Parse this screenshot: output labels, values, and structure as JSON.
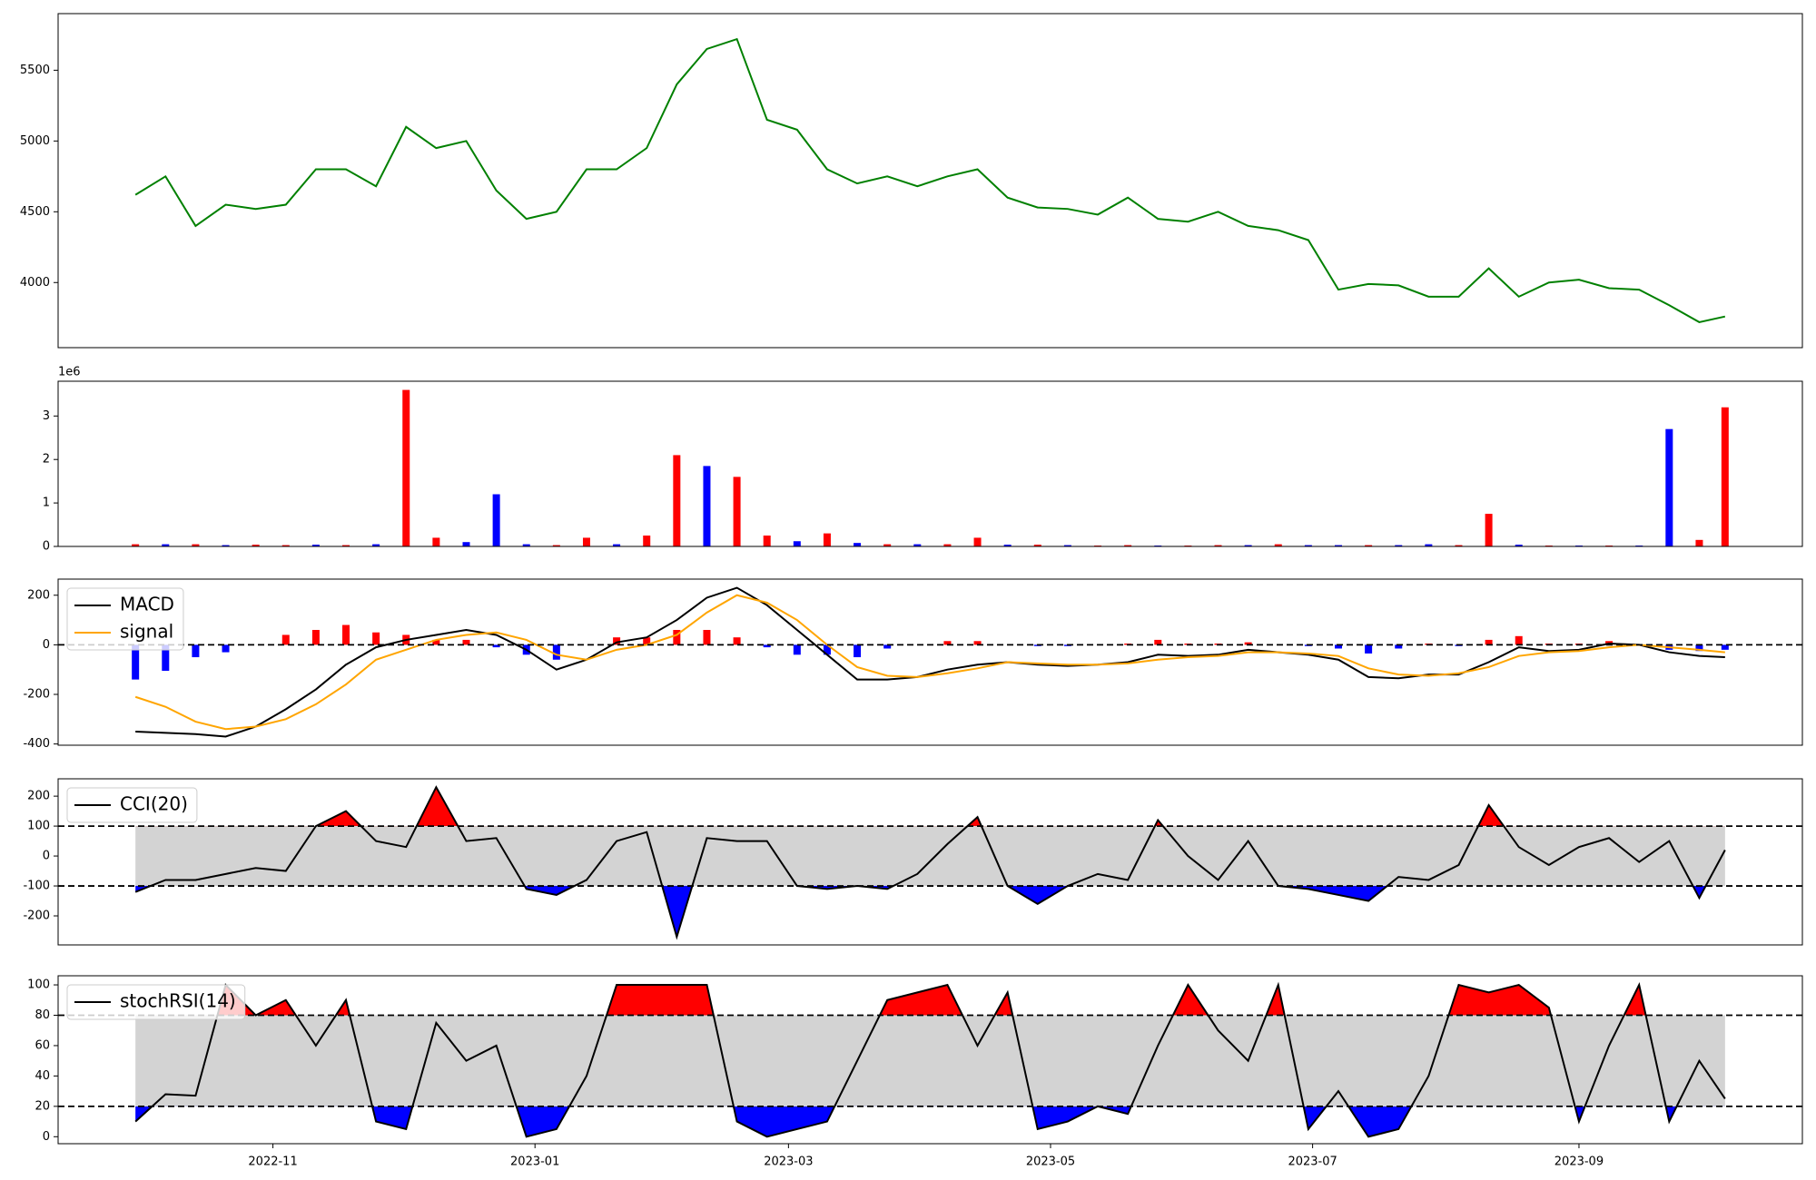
{
  "chart_data": [
    {
      "type": "line",
      "x": [
        "2022-09-30",
        "2022-10-07",
        "2022-10-14",
        "2022-10-21",
        "2022-10-28",
        "2022-11-04",
        "2022-11-11",
        "2022-11-18",
        "2022-11-25",
        "2022-12-02",
        "2022-12-09",
        "2022-12-16",
        "2022-12-23",
        "2022-12-30",
        "2023-01-06",
        "2023-01-13",
        "2023-01-20",
        "2023-01-27",
        "2023-02-03",
        "2023-02-10",
        "2023-02-17",
        "2023-02-24",
        "2023-03-03",
        "2023-03-10",
        "2023-03-17",
        "2023-03-24",
        "2023-03-31",
        "2023-04-07",
        "2023-04-14",
        "2023-04-21",
        "2023-04-28",
        "2023-05-05",
        "2023-05-12",
        "2023-05-19",
        "2023-05-26",
        "2023-06-02",
        "2023-06-09",
        "2023-06-16",
        "2023-06-23",
        "2023-06-30",
        "2023-07-07",
        "2023-07-14",
        "2023-07-21",
        "2023-07-28",
        "2023-08-04",
        "2023-08-11",
        "2023-08-18",
        "2023-08-25",
        "2023-09-01",
        "2023-09-08",
        "2023-09-15",
        "2023-09-22",
        "2023-09-29",
        "2023-10-05"
      ],
      "series": [
        {
          "color": "green",
          "values": [
            4620,
            4750,
            4400,
            4550,
            4520,
            4550,
            4800,
            4800,
            4680,
            5100,
            4950,
            5000,
            4650,
            4450,
            4500,
            4800,
            4800,
            4950,
            5400,
            5650,
            5720,
            5150,
            5080,
            4800,
            4700,
            4750,
            4680,
            4750,
            4800,
            4600,
            4530,
            4520,
            4480,
            4600,
            4450,
            4430,
            4500,
            4400,
            4370,
            4300,
            3950,
            3990,
            3980,
            3900,
            3900,
            4100,
            3900,
            4000,
            4020,
            3960,
            3950,
            3840,
            3720,
            3760
          ]
        }
      ],
      "xlim": [
        "2022-09-12",
        "2023-10-23"
      ],
      "ylim": [
        3540,
        5900
      ],
      "yticks": [
        4000,
        4500,
        5000,
        5500
      ]
    },
    {
      "type": "bar",
      "x": [
        "2022-09-30",
        "2022-10-07",
        "2022-10-14",
        "2022-10-21",
        "2022-10-28",
        "2022-11-04",
        "2022-11-11",
        "2022-11-18",
        "2022-11-25",
        "2022-12-02",
        "2022-12-09",
        "2022-12-16",
        "2022-12-23",
        "2022-12-30",
        "2023-01-06",
        "2023-01-13",
        "2023-01-20",
        "2023-01-27",
        "2023-02-03",
        "2023-02-10",
        "2023-02-17",
        "2023-02-24",
        "2023-03-03",
        "2023-03-10",
        "2023-03-17",
        "2023-03-24",
        "2023-03-31",
        "2023-04-07",
        "2023-04-14",
        "2023-04-21",
        "2023-04-28",
        "2023-05-05",
        "2023-05-12",
        "2023-05-19",
        "2023-05-26",
        "2023-06-02",
        "2023-06-09",
        "2023-06-16",
        "2023-06-23",
        "2023-06-30",
        "2023-07-07",
        "2023-07-14",
        "2023-07-21",
        "2023-07-28",
        "2023-08-04",
        "2023-08-11",
        "2023-08-18",
        "2023-08-25",
        "2023-09-01",
        "2023-09-08",
        "2023-09-15",
        "2023-09-22",
        "2023-09-29",
        "2023-10-05"
      ],
      "values": [
        0.05,
        0.05,
        0.05,
        0.03,
        0.04,
        0.03,
        0.04,
        0.03,
        0.05,
        3.6,
        0.2,
        0.1,
        1.2,
        0.05,
        0.03,
        0.2,
        0.05,
        0.25,
        2.1,
        1.85,
        1.6,
        0.25,
        0.12,
        0.3,
        0.08,
        0.05,
        0.05,
        0.05,
        0.2,
        0.04,
        0.04,
        0.03,
        0.02,
        0.03,
        0.02,
        0.02,
        0.03,
        0.03,
        0.05,
        0.03,
        0.03,
        0.03,
        0.03,
        0.05,
        0.03,
        0.75,
        0.04,
        0.02,
        0.02,
        0.02,
        0.02,
        2.7,
        0.15,
        3.2
      ],
      "colors": [
        "red",
        "blue",
        "red",
        "blue",
        "red",
        "red",
        "blue",
        "red",
        "blue",
        "red",
        "red",
        "blue",
        "blue",
        "blue",
        "red",
        "red",
        "blue",
        "red",
        "red",
        "blue",
        "red",
        "red",
        "blue",
        "red",
        "blue",
        "red",
        "blue",
        "red",
        "red",
        "blue",
        "red",
        "blue",
        "red",
        "red",
        "blue",
        "red",
        "red",
        "blue",
        "red",
        "blue",
        "blue",
        "red",
        "blue",
        "blue",
        "red",
        "red",
        "blue",
        "red",
        "blue",
        "red",
        "blue",
        "blue",
        "red",
        "red"
      ],
      "offset_label": "1e6",
      "xlim": [
        "2022-09-12",
        "2023-10-23"
      ],
      "ylim": [
        0,
        3.8
      ],
      "yticks": [
        0,
        1,
        2,
        3
      ]
    },
    {
      "type": "line",
      "x": [
        "2022-09-30",
        "2022-10-07",
        "2022-10-14",
        "2022-10-21",
        "2022-10-28",
        "2022-11-04",
        "2022-11-11",
        "2022-11-18",
        "2022-11-25",
        "2022-12-02",
        "2022-12-09",
        "2022-12-16",
        "2022-12-23",
        "2022-12-30",
        "2023-01-06",
        "2023-01-13",
        "2023-01-20",
        "2023-01-27",
        "2023-02-03",
        "2023-02-10",
        "2023-02-17",
        "2023-02-24",
        "2023-03-03",
        "2023-03-10",
        "2023-03-17",
        "2023-03-24",
        "2023-03-31",
        "2023-04-07",
        "2023-04-14",
        "2023-04-21",
        "2023-04-28",
        "2023-05-05",
        "2023-05-12",
        "2023-05-19",
        "2023-05-26",
        "2023-06-02",
        "2023-06-09",
        "2023-06-16",
        "2023-06-23",
        "2023-06-30",
        "2023-07-07",
        "2023-07-14",
        "2023-07-21",
        "2023-07-28",
        "2023-08-04",
        "2023-08-11",
        "2023-08-18",
        "2023-08-25",
        "2023-09-01",
        "2023-09-08",
        "2023-09-15",
        "2023-09-22",
        "2023-09-29",
        "2023-10-05"
      ],
      "series": [
        {
          "name": "MACD",
          "color": "black",
          "values": [
            -350,
            -355,
            -360,
            -370,
            -330,
            -260,
            -180,
            -80,
            -10,
            20,
            40,
            60,
            40,
            -20,
            -100,
            -60,
            10,
            30,
            100,
            190,
            230,
            160,
            60,
            -40,
            -140,
            -140,
            -130,
            -100,
            -80,
            -70,
            -80,
            -85,
            -80,
            -70,
            -40,
            -45,
            -40,
            -20,
            -30,
            -40,
            -60,
            -130,
            -135,
            -120,
            -120,
            -70,
            -10,
            -25,
            -20,
            5,
            0,
            -30,
            -45,
            -50
          ]
        },
        {
          "name": "signal",
          "color": "orange",
          "values": [
            -210,
            -250,
            -310,
            -340,
            -330,
            -300,
            -240,
            -160,
            -60,
            -20,
            20,
            40,
            50,
            20,
            -40,
            -60,
            -20,
            0,
            40,
            130,
            200,
            170,
            100,
            0,
            -90,
            -125,
            -130,
            -115,
            -95,
            -70,
            -75,
            -80,
            -80,
            -75,
            -60,
            -50,
            -45,
            -30,
            -30,
            -35,
            -45,
            -95,
            -120,
            -125,
            -115,
            -90,
            -45,
            -30,
            -25,
            -10,
            0,
            -10,
            -20,
            -30
          ]
        }
      ],
      "bars": {
        "values": [
          -140,
          -105,
          -50,
          -30,
          0,
          40,
          60,
          80,
          50,
          40,
          20,
          20,
          -10,
          -40,
          -60,
          0,
          30,
          30,
          60,
          60,
          30,
          -10,
          -40,
          -40,
          -50,
          -15,
          0,
          15,
          15,
          0,
          -5,
          -5,
          0,
          5,
          20,
          5,
          5,
          10,
          0,
          -5,
          -15,
          -35,
          -15,
          5,
          -5,
          20,
          35,
          5,
          5,
          15,
          0,
          -20,
          -25,
          -20
        ],
        "positive_color": "red",
        "negative_color": "blue"
      },
      "hlines": [
        0
      ],
      "legend": "upper left",
      "xlim": [
        "2022-09-12",
        "2023-10-23"
      ],
      "ylim": [
        -405,
        265
      ],
      "yticks": [
        -400,
        -200,
        0,
        200
      ]
    },
    {
      "type": "line",
      "x": [
        "2022-09-30",
        "2022-10-07",
        "2022-10-14",
        "2022-10-21",
        "2022-10-28",
        "2022-11-04",
        "2022-11-11",
        "2022-11-18",
        "2022-11-25",
        "2022-12-02",
        "2022-12-09",
        "2022-12-16",
        "2022-12-23",
        "2022-12-30",
        "2023-01-06",
        "2023-01-13",
        "2023-01-20",
        "2023-01-27",
        "2023-02-03",
        "2023-02-10",
        "2023-02-17",
        "2023-02-24",
        "2023-03-03",
        "2023-03-10",
        "2023-03-17",
        "2023-03-24",
        "2023-03-31",
        "2023-04-07",
        "2023-04-14",
        "2023-04-21",
        "2023-04-28",
        "2023-05-05",
        "2023-05-12",
        "2023-05-19",
        "2023-05-26",
        "2023-06-02",
        "2023-06-09",
        "2023-06-16",
        "2023-06-23",
        "2023-06-30",
        "2023-07-07",
        "2023-07-14",
        "2023-07-21",
        "2023-07-28",
        "2023-08-04",
        "2023-08-11",
        "2023-08-18",
        "2023-08-25",
        "2023-09-01",
        "2023-09-08",
        "2023-09-15",
        "2023-09-22",
        "2023-09-29",
        "2023-10-05"
      ],
      "series": [
        {
          "name": "CCI(20)",
          "color": "black",
          "values": [
            -120,
            -80,
            -80,
            -60,
            -40,
            -50,
            100,
            150,
            50,
            30,
            230,
            50,
            60,
            -110,
            -130,
            -80,
            50,
            80,
            -270,
            60,
            50,
            50,
            -100,
            -110,
            -100,
            -110,
            -60,
            40,
            130,
            -100,
            -160,
            -100,
            -60,
            -80,
            120,
            0,
            -80,
            50,
            -100,
            -110,
            -130,
            -150,
            -70,
            -80,
            -30,
            170,
            30,
            -30,
            30,
            60,
            -20,
            50,
            -140,
            20
          ]
        }
      ],
      "hlines": [
        100,
        -100
      ],
      "fill": {
        "between": "#d3d3d3",
        "above": "red",
        "below": "blue"
      },
      "legend": "upper left",
      "xlim": [
        "2022-09-12",
        "2023-10-23"
      ],
      "ylim": [
        -297,
        258
      ],
      "yticks": [
        -200,
        -100,
        0,
        100,
        200
      ]
    },
    {
      "type": "line",
      "x": [
        "2022-09-30",
        "2022-10-07",
        "2022-10-14",
        "2022-10-21",
        "2022-10-28",
        "2022-11-04",
        "2022-11-11",
        "2022-11-18",
        "2022-11-25",
        "2022-12-02",
        "2022-12-09",
        "2022-12-16",
        "2022-12-23",
        "2022-12-30",
        "2023-01-06",
        "2023-01-13",
        "2023-01-20",
        "2023-01-27",
        "2023-02-03",
        "2023-02-10",
        "2023-02-17",
        "2023-02-24",
        "2023-03-03",
        "2023-03-10",
        "2023-03-17",
        "2023-03-24",
        "2023-03-31",
        "2023-04-07",
        "2023-04-14",
        "2023-04-21",
        "2023-04-28",
        "2023-05-05",
        "2023-05-12",
        "2023-05-19",
        "2023-05-26",
        "2023-06-02",
        "2023-06-09",
        "2023-06-16",
        "2023-06-23",
        "2023-06-30",
        "2023-07-07",
        "2023-07-14",
        "2023-07-21",
        "2023-07-28",
        "2023-08-04",
        "2023-08-11",
        "2023-08-18",
        "2023-08-25",
        "2023-09-01",
        "2023-09-08",
        "2023-09-15",
        "2023-09-22",
        "2023-09-29",
        "2023-10-05"
      ],
      "series": [
        {
          "name": "stochRSI(14)",
          "color": "black",
          "values": [
            10,
            28,
            27,
            100,
            80,
            90,
            60,
            90,
            10,
            5,
            75,
            50,
            60,
            0,
            5,
            40,
            100,
            100,
            100,
            100,
            10,
            0,
            5,
            10,
            50,
            90,
            95,
            100,
            60,
            95,
            5,
            10,
            20,
            15,
            60,
            100,
            70,
            50,
            100,
            5,
            30,
            0,
            5,
            40,
            100,
            95,
            100,
            85,
            10,
            60,
            100,
            10,
            50,
            25
          ]
        }
      ],
      "hlines": [
        80,
        20
      ],
      "fill": {
        "between": "#d3d3d3",
        "above": "red",
        "below": "blue"
      },
      "legend": "upper left",
      "xlim": [
        "2022-09-12",
        "2023-10-23"
      ],
      "xticks": [
        "2022-11",
        "2023-01",
        "2023-03",
        "2023-05",
        "2023-07",
        "2023-09"
      ],
      "ylim": [
        -4.6,
        106
      ],
      "yticks": [
        0,
        20,
        40,
        60,
        80,
        100
      ]
    }
  ]
}
